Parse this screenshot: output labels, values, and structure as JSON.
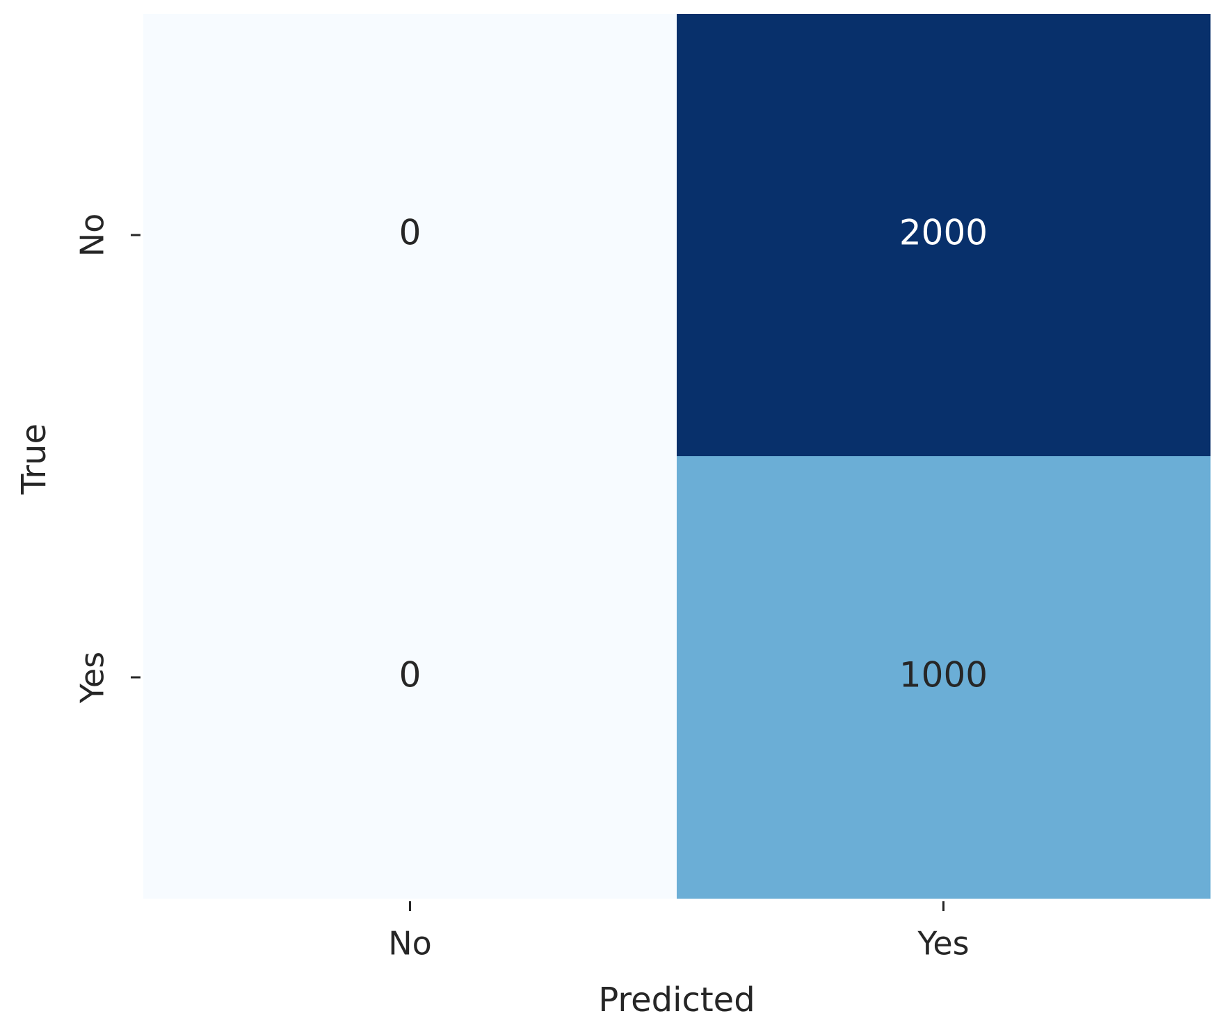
{
  "chart_data": {
    "type": "heatmap",
    "x_categories": [
      "No",
      "Yes"
    ],
    "y_categories": [
      "No",
      "Yes"
    ],
    "values": [
      [
        0,
        2000
      ],
      [
        0,
        1000
      ]
    ],
    "xlabel": "Predicted",
    "ylabel": "True",
    "colormap": "Blues"
  }
}
